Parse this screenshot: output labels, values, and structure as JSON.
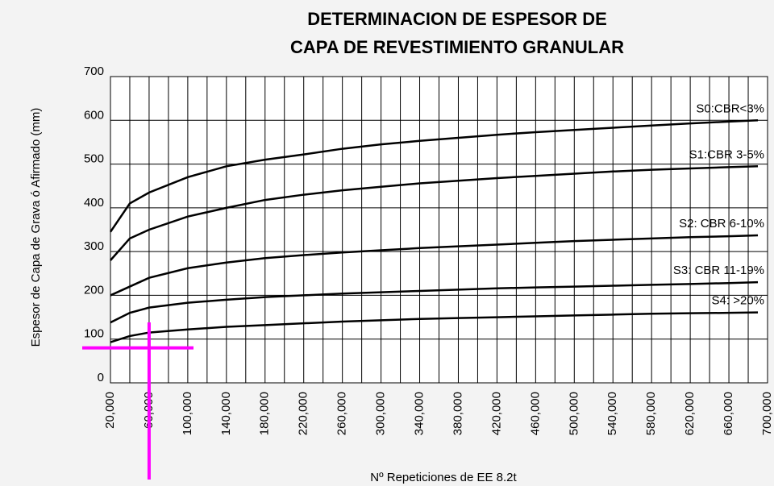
{
  "chart_data": {
    "type": "line",
    "title": [
      "DETERMINACION DE ESPESOR DE",
      "CAPA DE REVESTIMIENTO GRANULAR"
    ],
    "x_label": "Nº Repeticiones de EE 8.2t",
    "y_label": "Espesor de Capa de Grava ó Afirmado (mm)",
    "x": [
      20000,
      40000,
      60000,
      100000,
      140000,
      180000,
      220000,
      260000,
      300000,
      340000,
      380000,
      420000,
      460000,
      500000,
      540000,
      580000,
      620000,
      660000,
      690000
    ],
    "series": [
      {
        "name": "S0:CBR<3%",
        "color": "#000000",
        "values": [
          345,
          410,
          435,
          470,
          495,
          510,
          522,
          535,
          545,
          553,
          560,
          567,
          573,
          578,
          583,
          588,
          593,
          597,
          600
        ]
      },
      {
        "name": "S1:CBR 3-5%",
        "color": "#000000",
        "values": [
          280,
          330,
          350,
          380,
          400,
          418,
          430,
          440,
          448,
          456,
          462,
          468,
          473,
          478,
          483,
          487,
          490,
          493,
          495
        ]
      },
      {
        "name": "S2: CBR 6-10%",
        "color": "#000000",
        "values": [
          200,
          220,
          240,
          262,
          275,
          285,
          292,
          298,
          303,
          308,
          312,
          316,
          320,
          324,
          327,
          330,
          333,
          335,
          337
        ]
      },
      {
        "name": "S3: CBR 11-19%",
        "color": "#000000",
        "values": [
          138,
          160,
          172,
          183,
          190,
          196,
          200,
          204,
          207,
          210,
          213,
          216,
          218,
          220,
          222,
          224,
          226,
          228,
          230
        ]
      },
      {
        "name": "S4:  >20%",
        "color": "#000000",
        "values": [
          93,
          107,
          115,
          122,
          128,
          132,
          136,
          140,
          143,
          146,
          148,
          150,
          152,
          154,
          156,
          158,
          159,
          160,
          161
        ]
      }
    ],
    "xlim": [
      20000,
      700000
    ],
    "xticks": [
      {
        "value": 20000,
        "label": "20,000"
      },
      {
        "value": 60000,
        "label": "60,000"
      },
      {
        "value": 100000,
        "label": "100,000"
      },
      {
        "value": 140000,
        "label": "140,000"
      },
      {
        "value": 180000,
        "label": "180,000"
      },
      {
        "value": 220000,
        "label": "220,000"
      },
      {
        "value": 260000,
        "label": "260,000"
      },
      {
        "value": 300000,
        "label": "300,000"
      },
      {
        "value": 340000,
        "label": "340,000"
      },
      {
        "value": 380000,
        "label": "380,000"
      },
      {
        "value": 420000,
        "label": "420,000"
      },
      {
        "value": 460000,
        "label": "460,000"
      },
      {
        "value": 500000,
        "label": "500,000"
      },
      {
        "value": 540000,
        "label": "540,000"
      },
      {
        "value": 580000,
        "label": "580,000"
      },
      {
        "value": 620000,
        "label": "620,000"
      },
      {
        "value": 660000,
        "label": "660,000"
      },
      {
        "value": 700000,
        "label": "700,000"
      }
    ],
    "x_minor_ticks": [
      40000,
      80000,
      120000,
      160000,
      200000,
      240000,
      280000,
      320000,
      360000,
      400000,
      440000,
      480000,
      520000,
      560000,
      600000,
      640000,
      680000
    ],
    "ylim": [
      0,
      700
    ],
    "yticks": [
      0,
      100,
      200,
      300,
      400,
      500,
      600,
      700
    ],
    "grid": true,
    "reference_lines": [
      {
        "axis": "x",
        "value": 60000,
        "color": "#ff00ff"
      },
      {
        "axis": "y",
        "value": 80,
        "color": "#ff00ff"
      }
    ]
  }
}
